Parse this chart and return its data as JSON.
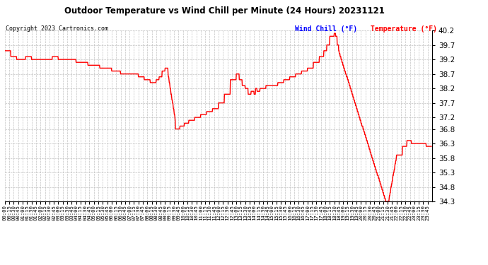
{
  "title": "Outdoor Temperature vs Wind Chill per Minute (24 Hours) 20231121",
  "copyright": "Copyright 2023 Cartronics.com",
  "legend_wind_chill": "Wind Chill (°F)",
  "legend_temperature": "Temperature (°F)",
  "ylabel_right_values": [
    40.2,
    39.7,
    39.2,
    38.7,
    38.2,
    37.7,
    37.2,
    36.8,
    36.3,
    35.8,
    35.3,
    34.8,
    34.3
  ],
  "ymin": 34.3,
  "ymax": 40.2,
  "background_color": "#ffffff",
  "plot_bg_color": "#ffffff",
  "grid_color": "#bbbbbb",
  "line_color": "#ff0000",
  "title_color": "#000000",
  "copyright_color": "#000000",
  "wind_chill_legend_color": "#0000ff",
  "temperature_legend_color": "#ff0000",
  "num_minutes": 1440,
  "figwidth": 6.9,
  "figheight": 3.75,
  "dpi": 100
}
